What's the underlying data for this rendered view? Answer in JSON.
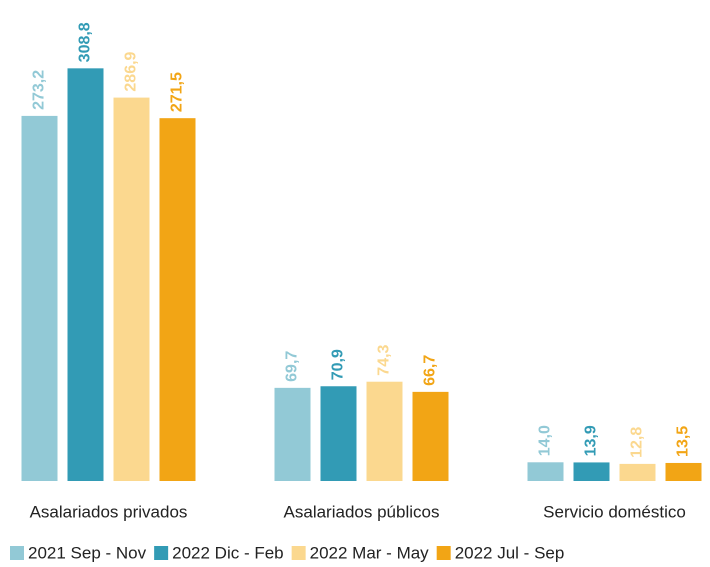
{
  "chart_data": {
    "type": "bar",
    "categories": [
      "Asalariados privados",
      "Asalariados públicos",
      "Servicio doméstico"
    ],
    "series": [
      {
        "name": "2021 Sep - Nov",
        "color": "#92c9d6",
        "values": [
          273.2,
          69.7,
          14.0
        ],
        "value_labels": [
          "273,2",
          "69,7",
          "14,0"
        ]
      },
      {
        "name": "2022 Dic - Feb",
        "color": "#329bb5",
        "values": [
          308.8,
          70.9,
          13.9
        ],
        "value_labels": [
          "308,8",
          "70,9",
          "13,9"
        ]
      },
      {
        "name": "2022 Mar - May",
        "color": "#fbd88f",
        "values": [
          286.9,
          74.3,
          12.8
        ],
        "value_labels": [
          "286,9",
          "74,3",
          "12,8"
        ]
      },
      {
        "name": "2022 Jul - Sep",
        "color": "#f2a515",
        "values": [
          271.5,
          66.7,
          13.5
        ],
        "value_labels": [
          "271,5",
          "66,7",
          "13,5"
        ]
      }
    ],
    "ylim": [
      0,
      330
    ],
    "legend": "bottom"
  }
}
